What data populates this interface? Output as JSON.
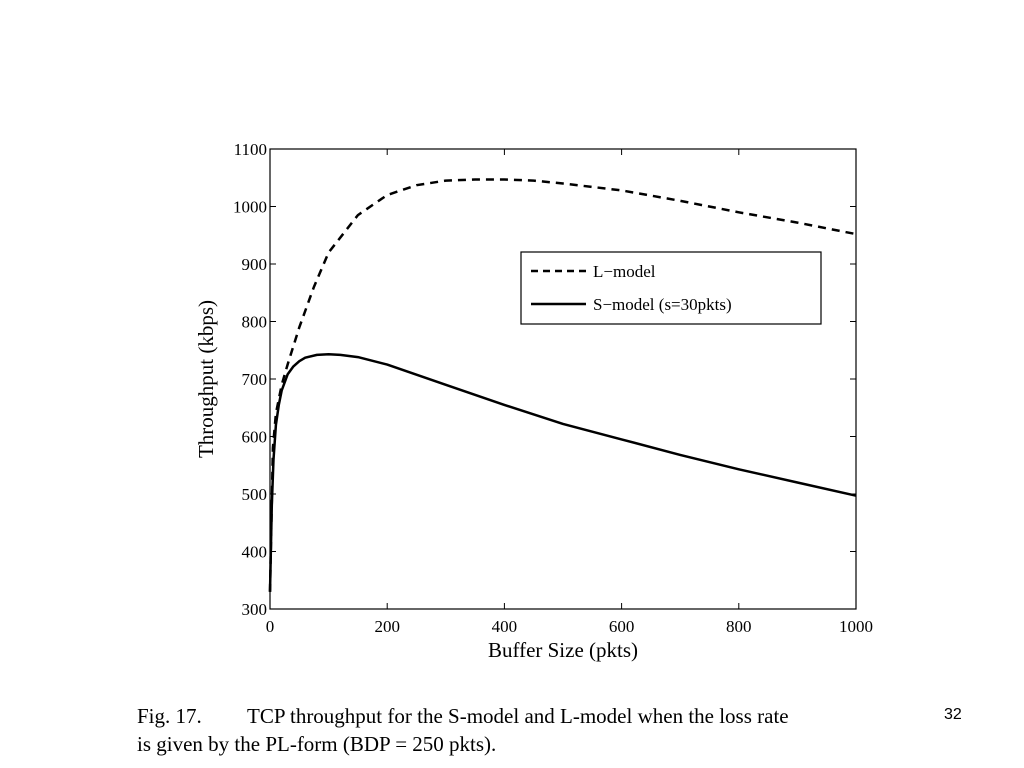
{
  "slide": {
    "page_number": "32"
  },
  "caption": {
    "label": "Fig. 17.",
    "line1": "TCP throughput for the S-model and L-model when the loss rate",
    "line2": "is given by the PL-form  (BDP = 250 pkts)."
  },
  "chart_data": {
    "type": "line",
    "title": "",
    "xlabel": "Buffer Size (pkts)",
    "ylabel": "Throughput (kbps)",
    "xlim": [
      0,
      1000
    ],
    "ylim": [
      300,
      1100
    ],
    "xticks": [
      0,
      200,
      400,
      600,
      800,
      1000
    ],
    "yticks": [
      300,
      400,
      500,
      600,
      700,
      800,
      900,
      1000,
      1100
    ],
    "grid": false,
    "legend_position": "top-right",
    "series": [
      {
        "name": "L−model",
        "style": "dashed",
        "color": "#000000",
        "x": [
          0,
          5,
          10,
          20,
          30,
          50,
          75,
          100,
          150,
          200,
          250,
          300,
          350,
          400,
          450,
          500,
          600,
          700,
          800,
          900,
          1000
        ],
        "y": [
          330,
          580,
          640,
          690,
          725,
          790,
          860,
          920,
          985,
          1020,
          1037,
          1045,
          1047,
          1047,
          1045,
          1040,
          1028,
          1010,
          990,
          972,
          952
        ]
      },
      {
        "name": "S−model (s=30pkts)",
        "style": "solid",
        "color": "#000000",
        "x": [
          0,
          3,
          6,
          10,
          15,
          20,
          30,
          40,
          50,
          60,
          80,
          100,
          120,
          150,
          200,
          300,
          400,
          500,
          600,
          700,
          800,
          900,
          1000
        ],
        "y": [
          330,
          480,
          560,
          620,
          655,
          680,
          708,
          722,
          731,
          737,
          742,
          743,
          742,
          738,
          725,
          690,
          655,
          622,
          595,
          568,
          543,
          520,
          497
        ]
      }
    ]
  }
}
